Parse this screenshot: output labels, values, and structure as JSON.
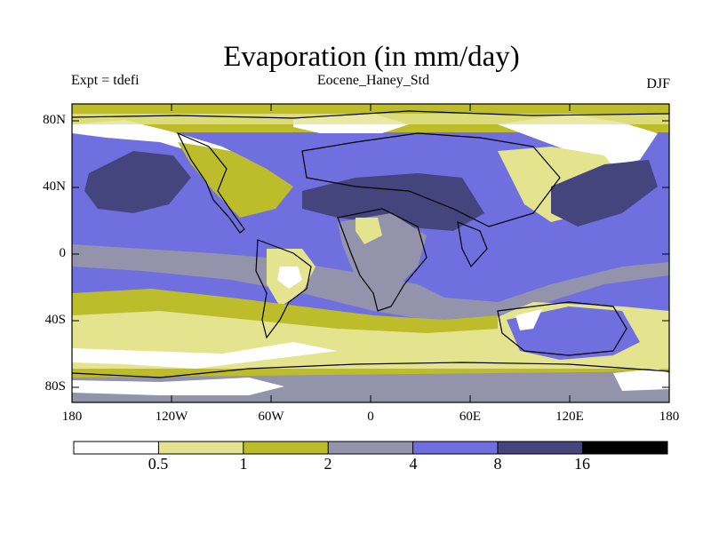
{
  "title": "Evaporation (in mm/day)",
  "experiment": "Expt = tdefi",
  "run_name": "Eocene_Haney_Std",
  "season": "DJF",
  "lat_labels": [
    "80N",
    "40N",
    "0",
    "40S",
    "80S"
  ],
  "lon_labels": [
    "180",
    "120W",
    "60W",
    "0",
    "60E",
    "120E",
    "180"
  ],
  "colorbar": {
    "colors": [
      "#ffffff",
      "#e4e38e",
      "#bdbc2a",
      "#9393ab",
      "#6f6fe0",
      "#45457e",
      "#000000"
    ],
    "labels": [
      "0.5",
      "1",
      "2",
      "4",
      "8",
      "16"
    ]
  },
  "colors": {
    "white": "#ffffff",
    "lt_yellow": "#e4e38e",
    "olive": "#bdbc2a",
    "gray": "#9393ab",
    "blue": "#6f6fe0",
    "dk_blue": "#45457e"
  }
}
